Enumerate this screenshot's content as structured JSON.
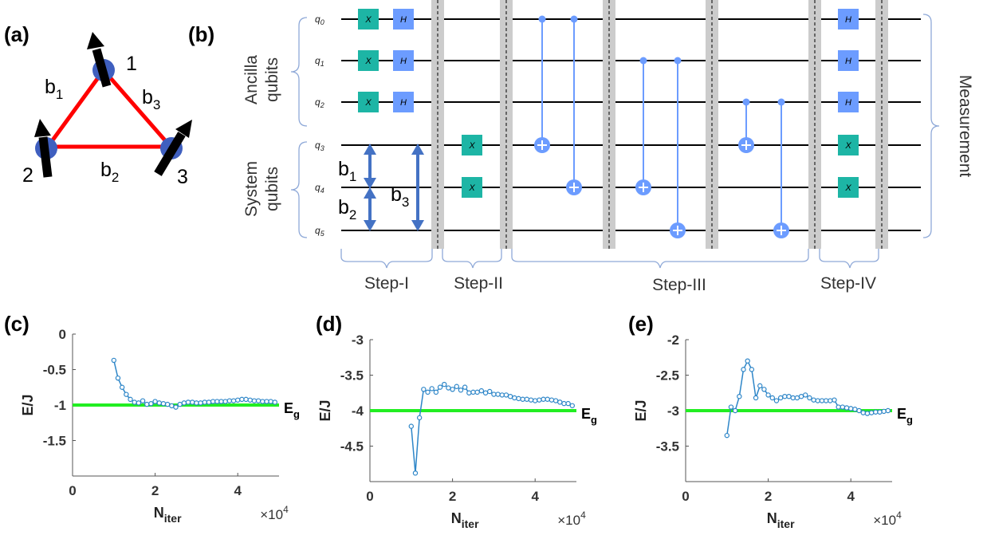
{
  "panels": {
    "a": "(a)",
    "b": "(b)",
    "c": "(c)",
    "d": "(d)",
    "e": "(e)"
  },
  "triangle": {
    "node1": "1",
    "node2": "2",
    "node3": "3",
    "b1": "b",
    "b1_sub": "1",
    "b2": "b",
    "b2_sub": "2",
    "b3": "b",
    "b3_sub": "3",
    "edge_color": "#ff0000",
    "node_color": "#3f5fbf"
  },
  "circuit": {
    "qubits": [
      "q0",
      "q1",
      "q2",
      "q3",
      "q4",
      "q5"
    ],
    "ancilla_label_1": "Ancilla",
    "ancilla_label_2": "qubits",
    "system_label_1": "System",
    "system_label_2": "qubits",
    "measurement_label": "Measurement",
    "steps": [
      "Step-I",
      "Step-II",
      "Step-III",
      "Step-IV"
    ],
    "x_gate": "X",
    "h_gate": "H",
    "bond_b": "b",
    "bond_subs": [
      "1",
      "2",
      "3"
    ],
    "colors": {
      "x_gate": "#1db5a5",
      "h_gate": "#6c9cff",
      "cnot": "#6c9cff",
      "arrow": "#4472c4",
      "barrier": "#cccccc"
    }
  },
  "chart_data": [
    {
      "panel": "(c)",
      "type": "line",
      "xlabel": "N",
      "xlabel_sub": "iter",
      "x_multiplier": "×10",
      "x_multiplier_exp": "4",
      "ylabel": "E/J",
      "xlim": [
        0,
        5
      ],
      "ylim": [
        -2,
        0
      ],
      "xticks": [
        "0",
        "2",
        "4"
      ],
      "yticks": [
        "0",
        "-0.5",
        "-1",
        "-1.5"
      ],
      "ytick_values": [
        0,
        -0.5,
        -1,
        -1.5
      ],
      "xtick_values": [
        0,
        2,
        4
      ],
      "ground_energy": -1,
      "ground_label": "E",
      "ground_label_sub": "g",
      "series": [
        {
          "x": [
            1.0,
            1.1,
            1.2,
            1.3,
            1.4,
            1.5,
            1.6,
            1.7,
            1.8,
            1.9,
            2.0,
            2.1,
            2.2,
            2.3,
            2.4,
            2.5,
            2.6,
            2.7,
            2.8,
            2.9,
            3.0,
            3.1,
            3.2,
            3.3,
            3.4,
            3.5,
            3.6,
            3.7,
            3.8,
            3.9,
            4.0,
            4.1,
            4.2,
            4.3,
            4.4,
            4.5,
            4.6,
            4.7,
            4.8,
            4.9
          ],
          "y": [
            -0.37,
            -0.62,
            -0.75,
            -0.85,
            -0.92,
            -0.96,
            -0.97,
            -0.94,
            -0.99,
            -0.98,
            -0.95,
            -0.97,
            -0.98,
            -0.99,
            -1.01,
            -1.03,
            -0.99,
            -0.97,
            -0.96,
            -0.96,
            -0.97,
            -0.97,
            -0.96,
            -0.96,
            -0.95,
            -0.95,
            -0.95,
            -0.95,
            -0.94,
            -0.94,
            -0.93,
            -0.92,
            -0.92,
            -0.93,
            -0.94,
            -0.94,
            -0.95,
            -0.95,
            -0.95,
            -0.96
          ]
        }
      ],
      "colors": {
        "series": "#2e86c8",
        "ground": "#22ee22"
      }
    },
    {
      "panel": "(d)",
      "type": "line",
      "xlabel": "N",
      "xlabel_sub": "iter",
      "x_multiplier": "×10",
      "x_multiplier_exp": "4",
      "ylabel": "E/J",
      "xlim": [
        0,
        5
      ],
      "ylim": [
        -5,
        -3
      ],
      "xticks": [
        "0",
        "2",
        "4"
      ],
      "yticks": [
        "-3",
        "-3.5",
        "-4",
        "-4.5"
      ],
      "ytick_values": [
        -3,
        -3.5,
        -4,
        -4.5
      ],
      "xtick_values": [
        0,
        2,
        4
      ],
      "ground_energy": -4,
      "ground_label": "E",
      "ground_label_sub": "g",
      "series": [
        {
          "x": [
            1.0,
            1.1,
            1.2,
            1.3,
            1.4,
            1.5,
            1.6,
            1.7,
            1.8,
            1.9,
            2.0,
            2.1,
            2.2,
            2.3,
            2.4,
            2.5,
            2.6,
            2.7,
            2.8,
            2.9,
            3.0,
            3.1,
            3.2,
            3.3,
            3.4,
            3.5,
            3.6,
            3.7,
            3.8,
            3.9,
            4.0,
            4.1,
            4.2,
            4.3,
            4.4,
            4.5,
            4.6,
            4.7,
            4.8,
            4.9
          ],
          "y": [
            -4.22,
            -4.88,
            -4.1,
            -3.7,
            -3.74,
            -3.69,
            -3.74,
            -3.67,
            -3.63,
            -3.68,
            -3.7,
            -3.66,
            -3.71,
            -3.67,
            -3.75,
            -3.74,
            -3.74,
            -3.72,
            -3.75,
            -3.73,
            -3.77,
            -3.77,
            -3.78,
            -3.78,
            -3.8,
            -3.82,
            -3.83,
            -3.84,
            -3.84,
            -3.85,
            -3.86,
            -3.85,
            -3.84,
            -3.84,
            -3.85,
            -3.86,
            -3.88,
            -3.9,
            -3.9,
            -3.93
          ]
        }
      ],
      "colors": {
        "series": "#2e86c8",
        "ground": "#22ee22"
      }
    },
    {
      "panel": "(e)",
      "type": "line",
      "xlabel": "N",
      "xlabel_sub": "iter",
      "x_multiplier": "×10",
      "x_multiplier_exp": "4",
      "ylabel": "E/J",
      "xlim": [
        0,
        5
      ],
      "ylim": [
        -4,
        -2
      ],
      "xticks": [
        "0",
        "2",
        "4"
      ],
      "yticks": [
        "-2",
        "-2.5",
        "-3",
        "-3.5"
      ],
      "ytick_values": [
        -2,
        -2.5,
        -3,
        -3.5
      ],
      "xtick_values": [
        0,
        2,
        4
      ],
      "ground_energy": -3,
      "ground_label": "E",
      "ground_label_sub": "g",
      "series": [
        {
          "x": [
            1.0,
            1.1,
            1.2,
            1.3,
            1.4,
            1.5,
            1.6,
            1.7,
            1.8,
            1.9,
            2.0,
            2.1,
            2.2,
            2.3,
            2.4,
            2.5,
            2.6,
            2.7,
            2.8,
            2.9,
            3.0,
            3.1,
            3.2,
            3.3,
            3.4,
            3.5,
            3.6,
            3.7,
            3.8,
            3.9,
            4.0,
            4.1,
            4.2,
            4.3,
            4.4,
            4.5,
            4.6,
            4.7,
            4.8,
            4.9
          ],
          "y": [
            -3.35,
            -2.95,
            -3.0,
            -2.8,
            -2.42,
            -2.3,
            -2.42,
            -2.82,
            -2.65,
            -2.7,
            -2.78,
            -2.82,
            -2.86,
            -2.82,
            -2.8,
            -2.8,
            -2.82,
            -2.82,
            -2.8,
            -2.78,
            -2.82,
            -2.85,
            -2.86,
            -2.86,
            -2.86,
            -2.86,
            -2.85,
            -2.95,
            -2.95,
            -2.96,
            -2.97,
            -2.98,
            -3.0,
            -3.03,
            -3.04,
            -3.03,
            -3.02,
            -3.02,
            -3.01,
            -3.0
          ]
        }
      ],
      "colors": {
        "series": "#2e86c8",
        "ground": "#22ee22"
      }
    }
  ]
}
